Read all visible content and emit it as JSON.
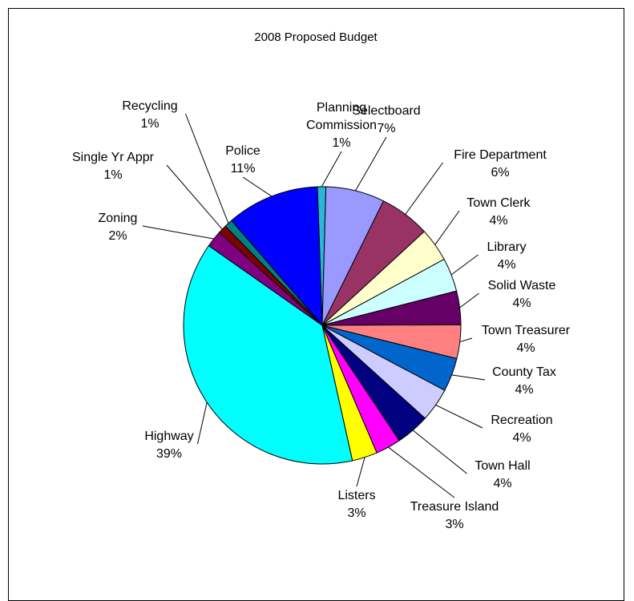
{
  "chart_data": {
    "type": "pie",
    "title": "2008 Proposed Budget",
    "start_angle_deg": -92,
    "slices": [
      {
        "name": "Planning Commission",
        "name_lines": [
          "Planning",
          "Commission"
        ],
        "value": 1,
        "label": "1%",
        "color": "#2bb7d9"
      },
      {
        "name": "Selectboard",
        "name_lines": [
          "Selectboard"
        ],
        "value": 7,
        "label": "7%",
        "color": "#9999ff"
      },
      {
        "name": "Fire Department",
        "name_lines": [
          "Fire Department"
        ],
        "value": 6,
        "label": "6%",
        "color": "#993366"
      },
      {
        "name": "Town Clerk",
        "name_lines": [
          "Town Clerk"
        ],
        "value": 4,
        "label": "4%",
        "color": "#ffffcc"
      },
      {
        "name": "Library",
        "name_lines": [
          "Library"
        ],
        "value": 4,
        "label": "4%",
        "color": "#ccffff"
      },
      {
        "name": "Solid Waste",
        "name_lines": [
          "Solid Waste"
        ],
        "value": 4,
        "label": "4%",
        "color": "#660066"
      },
      {
        "name": "Town Treasurer",
        "name_lines": [
          "Town Treasurer"
        ],
        "value": 4,
        "label": "4%",
        "color": "#ff8080"
      },
      {
        "name": "County Tax",
        "name_lines": [
          "County Tax"
        ],
        "value": 4,
        "label": "4%",
        "color": "#0066cc"
      },
      {
        "name": "Recreation",
        "name_lines": [
          "Recreation"
        ],
        "value": 4,
        "label": "4%",
        "color": "#ccccff"
      },
      {
        "name": "Town Hall",
        "name_lines": [
          "Town Hall"
        ],
        "value": 4,
        "label": "4%",
        "color": "#000080"
      },
      {
        "name": "Treasure Island",
        "name_lines": [
          "Treasure Island"
        ],
        "value": 3,
        "label": "3%",
        "color": "#ff00ff"
      },
      {
        "name": "Listers",
        "name_lines": [
          "Listers"
        ],
        "value": 3,
        "label": "3%",
        "color": "#ffff00"
      },
      {
        "name": "Highway",
        "name_lines": [
          "Highway"
        ],
        "value": 39,
        "label": "39%",
        "color": "#00ffff"
      },
      {
        "name": "Zoning",
        "name_lines": [
          "Zoning"
        ],
        "value": 2,
        "label": "2%",
        "color": "#800080"
      },
      {
        "name": "Single Yr Appr",
        "name_lines": [
          "Single Yr Appr"
        ],
        "value": 1,
        "label": "1%",
        "color": "#800000"
      },
      {
        "name": "Recycling",
        "name_lines": [
          "Recycling"
        ],
        "value": 1,
        "label": "1%",
        "color": "#008080"
      },
      {
        "name": "Police",
        "name_lines": [
          "Police"
        ],
        "value": 11,
        "label": "11%",
        "color": "#0000ff"
      }
    ]
  }
}
